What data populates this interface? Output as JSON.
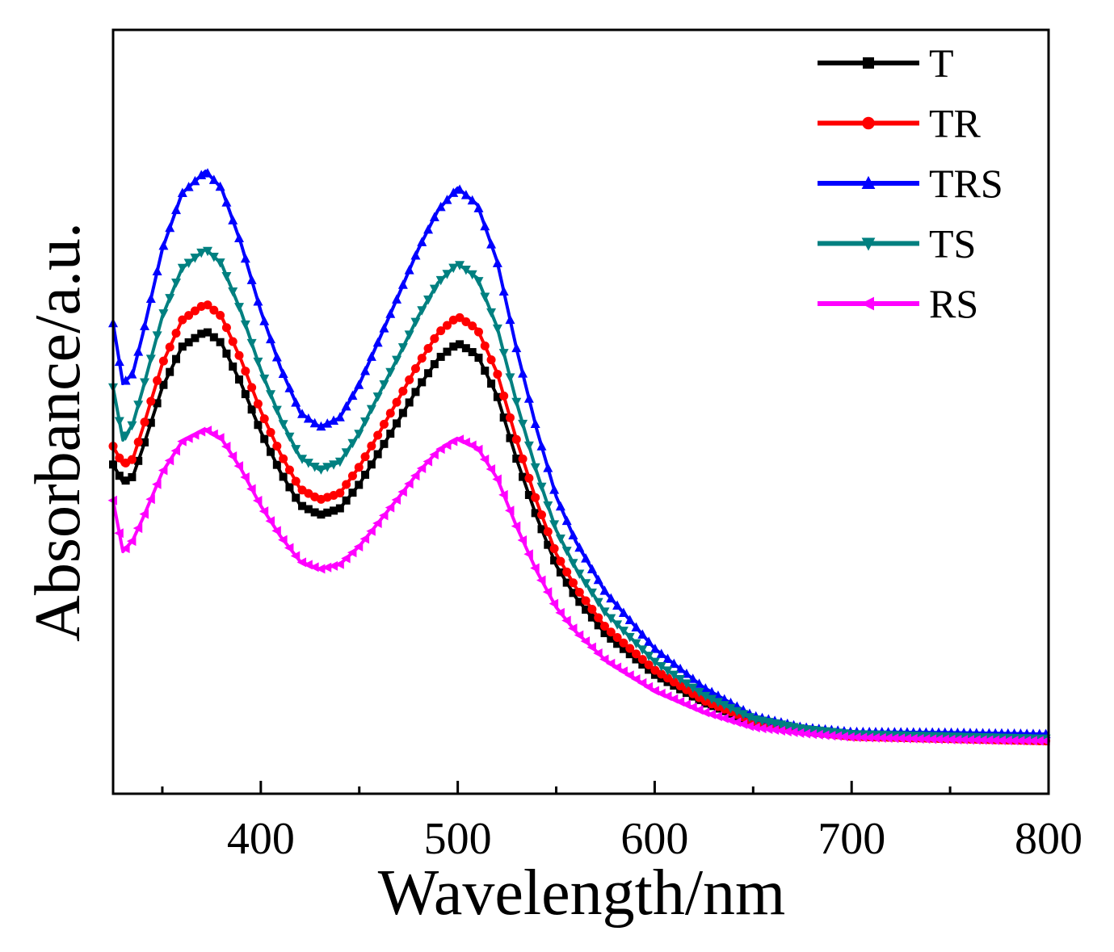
{
  "chart_data": {
    "type": "line",
    "title": "",
    "xlabel": "Wavelength/nm",
    "ylabel": "Absorbance/a.u.",
    "xlim": [
      325,
      800
    ],
    "ylim": [
      0,
      1
    ],
    "xticks": [
      400,
      500,
      600,
      700,
      800
    ],
    "xtick_labels": [
      "400",
      "500",
      "600",
      "700",
      "800"
    ],
    "x_minor_ticks": [
      350,
      450,
      550,
      650,
      750
    ],
    "yticks": [],
    "grid": false,
    "legend_position": "top-right",
    "x": [
      325,
      330,
      335,
      340,
      350,
      360,
      372,
      380,
      390,
      400,
      410,
      420,
      430,
      440,
      450,
      460,
      470,
      480,
      490,
      500,
      510,
      520,
      530,
      540,
      550,
      560,
      575,
      600,
      625,
      650,
      675,
      700,
      750,
      800
    ],
    "series": [
      {
        "name": "T",
        "color": "#000000",
        "marker": "square",
        "values": [
          0.431,
          0.408,
          0.415,
          0.452,
          0.532,
          0.585,
          0.606,
          0.59,
          0.537,
          0.474,
          0.421,
          0.378,
          0.365,
          0.373,
          0.405,
          0.447,
          0.489,
          0.532,
          0.569,
          0.59,
          0.574,
          0.521,
          0.437,
          0.363,
          0.299,
          0.257,
          0.209,
          0.156,
          0.119,
          0.093,
          0.082,
          0.075,
          0.072,
          0.069
        ]
      },
      {
        "name": "TR",
        "color": "#ff0000",
        "marker": "circle",
        "values": [
          0.455,
          0.431,
          0.438,
          0.478,
          0.563,
          0.62,
          0.642,
          0.625,
          0.568,
          0.501,
          0.445,
          0.399,
          0.385,
          0.393,
          0.428,
          0.472,
          0.517,
          0.563,
          0.603,
          0.625,
          0.608,
          0.551,
          0.462,
          0.383,
          0.314,
          0.27,
          0.218,
          0.162,
          0.122,
          0.095,
          0.083,
          0.075,
          0.072,
          0.069
        ]
      },
      {
        "name": "TRS",
        "color": "#0000ff",
        "marker": "triangle-up",
        "values": [
          0.616,
          0.537,
          0.55,
          0.601,
          0.713,
          0.786,
          0.815,
          0.793,
          0.72,
          0.632,
          0.558,
          0.499,
          0.48,
          0.492,
          0.536,
          0.594,
          0.653,
          0.713,
          0.764,
          0.793,
          0.771,
          0.697,
          0.581,
          0.478,
          0.389,
          0.33,
          0.264,
          0.19,
          0.139,
          0.102,
          0.087,
          0.081,
          0.08,
          0.078
        ]
      },
      {
        "name": "TS",
        "color": "#008080",
        "marker": "triangle-down",
        "values": [
          0.532,
          0.463,
          0.484,
          0.529,
          0.625,
          0.688,
          0.713,
          0.694,
          0.631,
          0.555,
          0.491,
          0.44,
          0.424,
          0.434,
          0.472,
          0.523,
          0.573,
          0.625,
          0.669,
          0.694,
          0.675,
          0.611,
          0.511,
          0.422,
          0.345,
          0.295,
          0.237,
          0.173,
          0.129,
          0.098,
          0.085,
          0.078,
          0.075,
          0.072
        ]
      },
      {
        "name": "RS",
        "color": "#ff00ff",
        "marker": "triangle-left",
        "values": [
          0.384,
          0.317,
          0.332,
          0.36,
          0.421,
          0.461,
          0.477,
          0.465,
          0.425,
          0.377,
          0.337,
          0.304,
          0.294,
          0.3,
          0.324,
          0.356,
          0.388,
          0.421,
          0.449,
          0.465,
          0.453,
          0.413,
          0.349,
          0.292,
          0.244,
          0.212,
          0.175,
          0.135,
          0.107,
          0.087,
          0.079,
          0.074,
          0.071,
          0.069
        ]
      }
    ]
  }
}
